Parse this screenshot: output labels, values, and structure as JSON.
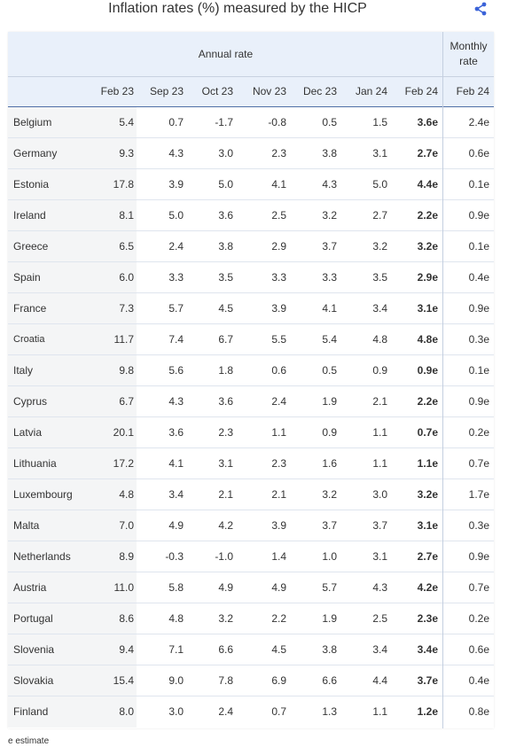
{
  "title": "Inflation rates (%) measured by the HICP",
  "share_icon": "share-icon",
  "header": {
    "annual_label": "Annual rate",
    "monthly_label_line1": "Monthly",
    "monthly_label_line2": "rate",
    "columns": [
      "",
      "Feb 23",
      "Sep 23",
      "Oct 23",
      "Nov 23",
      "Dec 23",
      "Jan 24",
      "Feb 24",
      "Feb 24"
    ]
  },
  "rows": [
    {
      "country": "Belgium",
      "values": [
        "5.4",
        "0.7",
        "-1.7",
        "-0.8",
        "0.5",
        "1.5",
        "3.6e",
        "2.4e"
      ]
    },
    {
      "country": "Germany",
      "values": [
        "9.3",
        "4.3",
        "3.0",
        "2.3",
        "3.8",
        "3.1",
        "2.7e",
        "0.6e"
      ]
    },
    {
      "country": "Estonia",
      "values": [
        "17.8",
        "3.9",
        "5.0",
        "4.1",
        "4.3",
        "5.0",
        "4.4e",
        "0.1e"
      ]
    },
    {
      "country": "Ireland",
      "values": [
        "8.1",
        "5.0",
        "3.6",
        "2.5",
        "3.2",
        "2.7",
        "2.2e",
        "0.9e"
      ]
    },
    {
      "country": "Greece",
      "values": [
        "6.5",
        "2.4",
        "3.8",
        "2.9",
        "3.7",
        "3.2",
        "3.2e",
        "0.1e"
      ]
    },
    {
      "country": "Spain",
      "values": [
        "6.0",
        "3.3",
        "3.5",
        "3.3",
        "3.3",
        "3.5",
        "2.9e",
        "0.4e"
      ]
    },
    {
      "country": "France",
      "values": [
        "7.3",
        "5.7",
        "4.5",
        "3.9",
        "4.1",
        "3.4",
        "3.1e",
        "0.9e"
      ]
    },
    {
      "country": "Croatia",
      "values": [
        "11.7",
        "7.4",
        "6.7",
        "5.5",
        "5.4",
        "4.8",
        "4.8e",
        "0.3e"
      ]
    },
    {
      "country": "Italy",
      "values": [
        "9.8",
        "5.6",
        "1.8",
        "0.6",
        "0.5",
        "0.9",
        "0.9e",
        "0.1e"
      ]
    },
    {
      "country": "Cyprus",
      "values": [
        "6.7",
        "4.3",
        "3.6",
        "2.4",
        "1.9",
        "2.1",
        "2.2e",
        "0.9e"
      ]
    },
    {
      "country": "Latvia",
      "values": [
        "20.1",
        "3.6",
        "2.3",
        "1.1",
        "0.9",
        "1.1",
        "0.7e",
        "0.2e"
      ]
    },
    {
      "country": "Lithuania",
      "values": [
        "17.2",
        "4.1",
        "3.1",
        "2.3",
        "1.6",
        "1.1",
        "1.1e",
        "0.7e"
      ]
    },
    {
      "country": "Luxembourg",
      "values": [
        "4.8",
        "3.4",
        "2.1",
        "2.1",
        "3.2",
        "3.0",
        "3.2e",
        "1.7e"
      ]
    },
    {
      "country": "Malta",
      "values": [
        "7.0",
        "4.9",
        "4.2",
        "3.9",
        "3.7",
        "3.7",
        "3.1e",
        "0.3e"
      ]
    },
    {
      "country": "Netherlands",
      "values": [
        "8.9",
        "-0.3",
        "-1.0",
        "1.4",
        "1.0",
        "3.1",
        "2.7e",
        "0.9e"
      ]
    },
    {
      "country": "Austria",
      "values": [
        "11.0",
        "5.8",
        "4.9",
        "4.9",
        "5.7",
        "4.3",
        "4.2e",
        "0.7e"
      ]
    },
    {
      "country": "Portugal",
      "values": [
        "8.6",
        "4.8",
        "3.2",
        "2.2",
        "1.9",
        "2.5",
        "2.3e",
        "0.2e"
      ]
    },
    {
      "country": "Slovenia",
      "values": [
        "9.4",
        "7.1",
        "6.6",
        "4.5",
        "3.8",
        "3.4",
        "3.4e",
        "0.6e"
      ]
    },
    {
      "country": "Slovakia",
      "values": [
        "15.4",
        "9.0",
        "7.8",
        "6.9",
        "6.6",
        "4.4",
        "3.7e",
        "0.4e"
      ]
    },
    {
      "country": "Finland",
      "values": [
        "8.0",
        "3.0",
        "2.4",
        "0.7",
        "1.3",
        "1.1",
        "1.2e",
        "0.8e"
      ]
    }
  ],
  "footnote": "e estimate",
  "colors": {
    "header_bg": "#e9f0fa",
    "country_col_bg": "#f4f5f6",
    "header_rule": "#4f6fa6",
    "share_icon": "#3b63d8"
  }
}
